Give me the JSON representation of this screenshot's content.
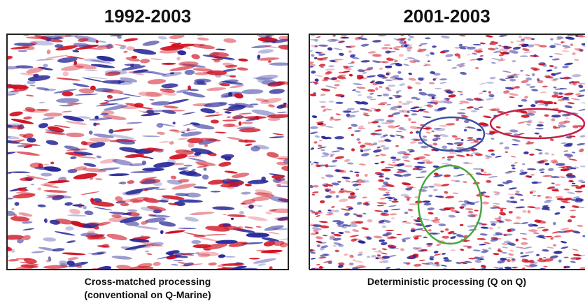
{
  "panels": [
    {
      "title": "1992-2003",
      "caption": [
        "Cross-matched processing",
        "(conventional on Q-Marine)"
      ]
    },
    {
      "title": "2001-2003",
      "caption": [
        "Deterministic processing (Q on Q)"
      ]
    }
  ]
}
